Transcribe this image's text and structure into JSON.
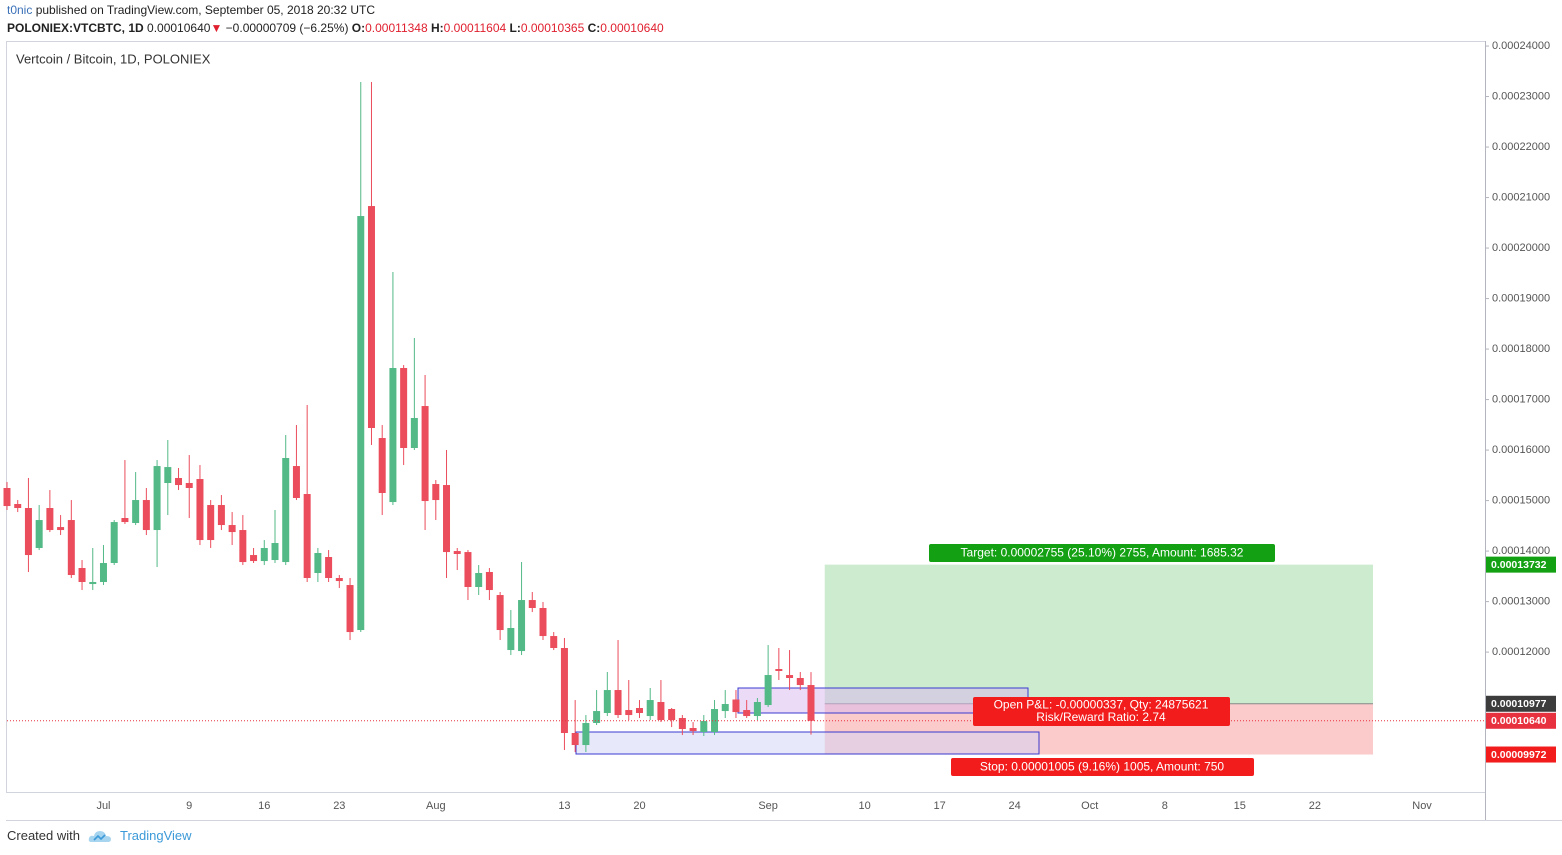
{
  "header": {
    "author": "t0nic",
    "published": "published on TradingView.com, September 05, 2018 20:32 UTC"
  },
  "legend": {
    "symbol": "POLONIEX:VTCBTC, 1D",
    "last": "0.00010640",
    "arrow": "▼",
    "change": "−0.00000709 (−6.25%)",
    "ohlc": [
      {
        "label": "O:",
        "value": "0.00011348"
      },
      {
        "label": "H:",
        "value": "0.00011604"
      },
      {
        "label": "L:",
        "value": "0.00010365"
      },
      {
        "label": "C:",
        "value": "0.00010640"
      }
    ]
  },
  "chart_data": {
    "type": "candlestick",
    "title": "Vertcoin / Bitcoin, 1D, POLONIEX",
    "categories": [
      null,
      null,
      null,
      null,
      null,
      null,
      null,
      null,
      null,
      "Jul",
      null,
      null,
      null,
      null,
      null,
      null,
      null,
      "9",
      null,
      null,
      null,
      null,
      null,
      null,
      "16",
      null,
      null,
      null,
      null,
      null,
      null,
      "23",
      null,
      null,
      null,
      null,
      null,
      null,
      null,
      null,
      "Aug",
      null,
      null,
      null,
      null,
      null,
      null,
      null,
      null,
      null,
      null,
      null,
      "13",
      null,
      null,
      null,
      null,
      null,
      null,
      "20",
      null,
      null,
      null,
      null,
      null,
      null,
      null,
      null,
      null,
      null,
      null,
      "Sep",
      null,
      null,
      null,
      null,
      null,
      null,
      null,
      null,
      "10",
      null,
      null,
      null,
      null,
      null,
      null,
      "17",
      null,
      null,
      null,
      null,
      null,
      null,
      "24",
      null,
      null,
      null,
      null,
      null,
      null,
      "Oct",
      null,
      null,
      null,
      null,
      null,
      null,
      "8",
      null,
      null,
      null,
      null,
      null,
      null,
      "15",
      null,
      null,
      null,
      null,
      null,
      null,
      "22",
      null,
      null,
      null,
      null,
      null,
      null,
      null,
      null,
      null,
      "Nov"
    ],
    "open": [
      0.00015249,
      0.00014932,
      0.00014853,
      0.00014061,
      0.00014853,
      0.00014476,
      0.00014615,
      0.00013665,
      0.00013348,
      0.00013388,
      0.00013764,
      0.00014655,
      0.00014556,
      0.00015011,
      0.00014417,
      0.00015348,
      0.00015447,
      0.00015348,
      0.00015427,
      0.00014912,
      0.00014912,
      0.00014516,
      0.00014417,
      0.00013922,
      0.00013803,
      0.00013823,
      0.00013783,
      0.00015684,
      0.0001513,
      0.00013566,
      0.00013883,
      0.00013467,
      0.00013328,
      0.00012437,
      0.00020832,
      0.00016239,
      0.00014971,
      0.00017625,
      0.00016041,
      0.00016872,
      0.00015328,
      0.00015308,
      0.00014001,
      0.00013981,
      0.00013289,
      0.00013586,
      0.0001313,
      0.00012041,
      0.00012021,
      0.00013031,
      0.00012873,
      0.00012318,
      0.00012081,
      0.00010398,
      0.0001016,
      0.00010596,
      0.00010794,
      0.00011249,
      0.00010853,
      0.00010893,
      0.00010734,
      0.00011012,
      0.00010873,
      0.00010695,
      0.00010497,
      0.00010418,
      0.00010418,
      0.00010833,
      0.00011061,
      0.00010853,
      0.00010734,
      0.00010952,
      0.00011665,
      0.00011546,
      0.00011487,
      0.00011348,
      null,
      null,
      null,
      null,
      null,
      null,
      null,
      null,
      null,
      null,
      null,
      null,
      null,
      null,
      null,
      null,
      null,
      null,
      null,
      null,
      null,
      null,
      null,
      null,
      null,
      null,
      null,
      null,
      null,
      null,
      null,
      null,
      null,
      null,
      null,
      null,
      null,
      null,
      null,
      null,
      null,
      null,
      null,
      null,
      null,
      null,
      null,
      null,
      null,
      null,
      null,
      null,
      null,
      null,
      null,
      null,
      null
    ],
    "high": [
      0.00015367,
      0.00015011,
      0.00015447,
      0.00014912,
      0.00015209,
      0.00014714,
      0.00015011,
      0.00013823,
      0.00014061,
      0.0001412,
      0.00014615,
      0.00015803,
      0.00015565,
      0.00015249,
      0.00015803,
      0.00016199,
      0.00015645,
      0.00015902,
      0.00015704,
      0.00015011,
      0.0001511,
      0.00014773,
      0.00014714,
      0.00014061,
      0.00014219,
      0.00014813,
      0.00016298,
      0.00016496,
      0.00016892,
      0.00014061,
      0.00014021,
      0.00013526,
      0.00013467,
      0.00023287,
      0.00023287,
      0.00016496,
      0.00019525,
      0.00017684,
      0.00018219,
      0.00017486,
      0.00015407,
      0.00016001,
      0.00014061,
      0.00014021,
      0.00013724,
      0.00013665,
      0.0001319,
      0.00012833,
      0.00013784,
      0.0001319,
      0.00012991,
      0.00012397,
      0.00012279,
      0.00011051,
      0.00010754,
      0.00011249,
      0.00011606,
      0.00012239,
      0.00011447,
      0.00011051,
      0.00011289,
      0.00011447,
      0.00010893,
      0.00010754,
      0.00010615,
      0.00010754,
      0.00011051,
      0.00011249,
      0.00011249,
      0.00011051,
      0.00011091,
      0.0001214,
      0.00012081,
      0.00012041,
      0.00011606,
      0.00011604,
      null,
      null,
      null,
      null,
      null,
      null,
      null,
      null,
      null,
      null,
      null,
      null,
      null,
      null,
      null,
      null,
      null,
      null,
      null,
      null,
      null,
      null,
      null,
      null,
      null,
      null,
      null,
      null,
      null,
      null,
      null,
      null,
      null,
      null,
      null,
      null,
      null,
      null,
      null,
      null,
      null,
      null,
      null,
      null,
      null,
      null,
      null,
      null,
      null,
      null,
      null,
      null,
      null,
      null,
      null,
      null,
      null
    ],
    "low": [
      0.00014813,
      0.00014773,
      0.00013585,
      0.00014021,
      0.00014377,
      0.00014318,
      0.00013467,
      0.00013229,
      0.00013229,
      0.00013328,
      0.00013724,
      0.00014536,
      0.00014516,
      0.00014318,
      0.00013685,
      0.00014714,
      0.00015209,
      0.00014655,
      0.0001412,
      0.00014061,
      0.00014417,
      0.0001412,
      0.00013724,
      0.00013764,
      0.00013724,
      0.00013764,
      0.00013724,
      0.00015011,
      0.00013388,
      0.00013388,
      0.00013388,
      0.00013269,
      0.00012239,
      0.00012397,
      0.000161,
      0.00014714,
      0.00014912,
      0.00015704,
      0.00016001,
      0.00014417,
      0.00014615,
      0.00013467,
      0.00013625,
      0.00013031,
      0.0001313,
      0.00013031,
      0.00012239,
      0.00011942,
      0.00011942,
      0.00012793,
      0.00012239,
      0.00012041,
      0.00010061,
      0.00010021,
      0.00010021,
      0.00010556,
      0.00010734,
      0.00010695,
      0.00010655,
      0.00010695,
      0.00010655,
      0.00010615,
      0.00010516,
      0.00010358,
      0.00010358,
      0.00010338,
      0.00010358,
      0.00010695,
      0.00010695,
      0.00010695,
      0.00010655,
      0.00010912,
      0.00011447,
      0.00011249,
      0.00011249,
      0.00010365,
      null,
      null,
      null,
      null,
      null,
      null,
      null,
      null,
      null,
      null,
      null,
      null,
      null,
      null,
      null,
      null,
      null,
      null,
      null,
      null,
      null,
      null,
      null,
      null,
      null,
      null,
      null,
      null,
      null,
      null,
      null,
      null,
      null,
      null,
      null,
      null,
      null,
      null,
      null,
      null,
      null,
      null,
      null,
      null,
      null,
      null,
      null,
      null,
      null,
      null,
      null,
      null,
      null,
      null,
      null,
      null,
      null
    ],
    "close": [
      0.00014892,
      0.00014853,
      0.00013922,
      0.00014615,
      0.00014417,
      0.00014417,
      0.00013526,
      0.00013388,
      0.00013388,
      0.00013764,
      0.00014575,
      0.00014575,
      0.00015011,
      0.00014417,
      0.00015684,
      0.00015664,
      0.00015308,
      0.00015249,
      0.00014219,
      0.00014219,
      0.00014516,
      0.00014377,
      0.00013783,
      0.00013803,
      0.00014061,
      0.0001416,
      0.00015843,
      0.00015051,
      0.00013467,
      0.00013962,
      0.00013467,
      0.00013407,
      0.00012397,
      0.00020634,
      0.00016437,
      0.0001515,
      0.00017625,
      0.00016041,
      0.00016635,
      0.00014991,
      0.00015011,
      0.00013981,
      0.00013942,
      0.00013289,
      0.00013566,
      0.00013229,
      0.00012437,
      0.00012477,
      0.00013031,
      0.00012873,
      0.00012318,
      0.00012081,
      0.00010398,
      0.0001016,
      0.00010596,
      0.00010833,
      0.00011249,
      0.00010754,
      0.00010754,
      0.00010794,
      0.00011051,
      0.00010655,
      0.00010655,
      0.00010477,
      0.00010437,
      0.00010635,
      0.00010873,
      0.00010972,
      0.00010813,
      0.00010734,
      0.00011012,
      0.00011546,
      0.00011626,
      0.00011487,
      0.00011348,
      0.0001064,
      null,
      null,
      null,
      null,
      null,
      null,
      null,
      null,
      null,
      null,
      null,
      null,
      null,
      null,
      null,
      null,
      null,
      null,
      null,
      null,
      null,
      null,
      null,
      null,
      null,
      null,
      null,
      null,
      null,
      null,
      null,
      null,
      null,
      null,
      null,
      null,
      null,
      null,
      null,
      null,
      null,
      null,
      null,
      null,
      null,
      null,
      null,
      null,
      null,
      null,
      null,
      null,
      null,
      null,
      null,
      null,
      null
    ],
    "up_color": "#53b987",
    "down_color": "#eb4d5c",
    "ylim": [
      9.23e-05,
      0.0002408
    ],
    "yticks": [
      {
        "value": 0.00012,
        "label": "0.00012000"
      },
      {
        "value": 0.00013,
        "label": "0.00013000"
      },
      {
        "value": 0.00014,
        "label": "0.00014000"
      },
      {
        "value": 0.00015,
        "label": "0.00015000"
      },
      {
        "value": 0.00016,
        "label": "0.00016000"
      },
      {
        "value": 0.00017,
        "label": "0.00017000"
      },
      {
        "value": 0.00018,
        "label": "0.00018000"
      },
      {
        "value": 0.00019,
        "label": "0.00019000"
      },
      {
        "value": 0.0002,
        "label": "0.00020000"
      },
      {
        "value": 0.00021,
        "label": "0.00021000"
      },
      {
        "value": 0.00022,
        "label": "0.00022000"
      },
      {
        "value": 0.00023,
        "label": "0.00023000"
      },
      {
        "value": 0.00024,
        "label": "0.00024000"
      }
    ],
    "current_price": {
      "value": 0.0001064,
      "label": "0.00010640",
      "color": "#e8313f"
    },
    "position": {
      "entry": 0.00010977,
      "target": 0.00013732,
      "stop": 9.972e-05,
      "profit_color": "#cdebcf",
      "loss_color": "#fbcaca",
      "entry_color": "#3c3c3c",
      "target_color": "#13a113",
      "stop_color": "#f21c1c",
      "target_label": "Target: 0.00002755 (25.10%) 2755, Amount: 1685.32",
      "pnl_label": "Open P&L: -0.00000337, Qty: 24875621",
      "rr_label": "Risk/Reward Ratio: 2.74",
      "stop_label": "Stop: 0.00001005 (9.16%) 1005, Amount: 750"
    }
  },
  "footer": {
    "created": "Created with",
    "brand": "TradingView"
  }
}
